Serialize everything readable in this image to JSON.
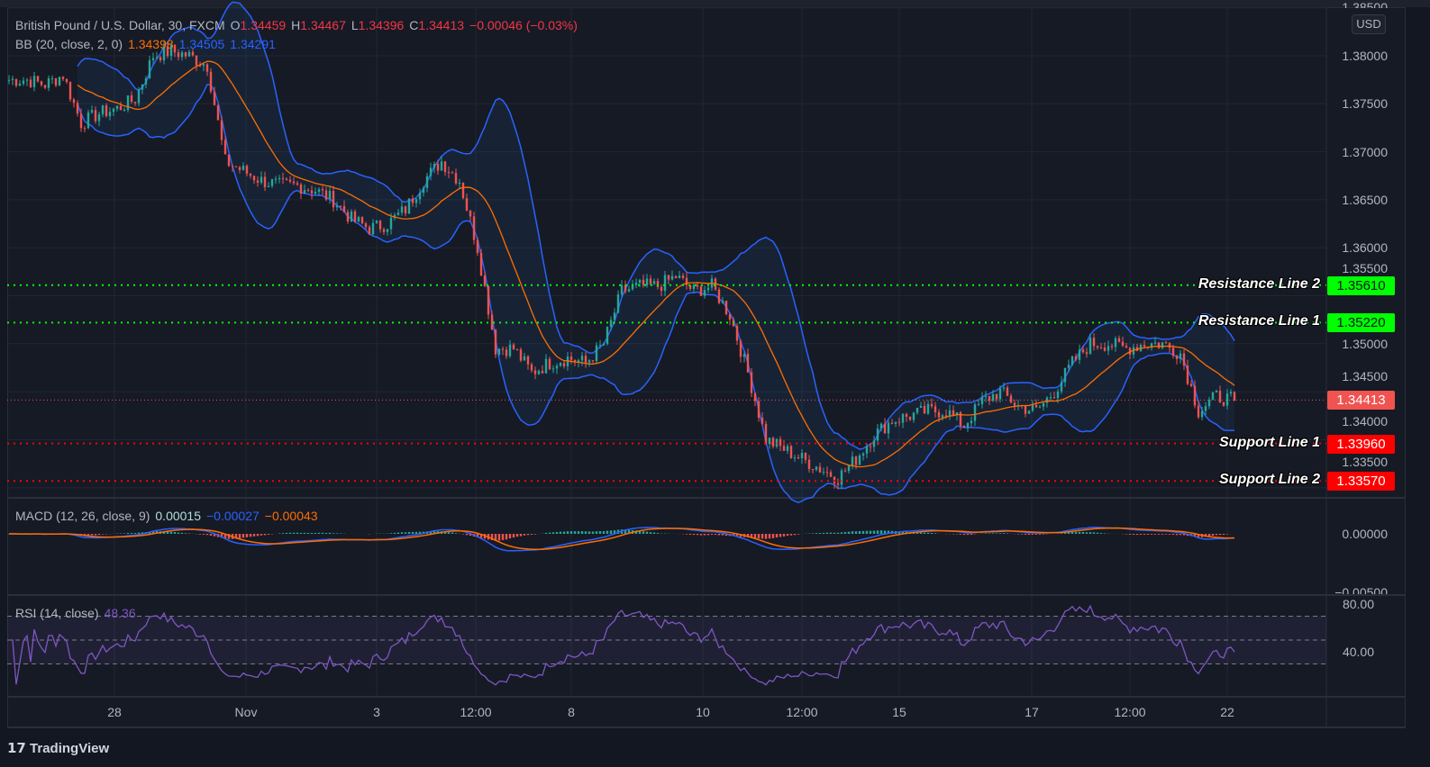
{
  "header": {
    "symbol": "British Pound / U.S. Dollar, 30, FXCM",
    "open_label": "O",
    "open": "1.34459",
    "high_label": "H",
    "high": "1.34467",
    "low_label": "L",
    "low": "1.34396",
    "close_label": "C",
    "close": "1.34413",
    "change": "−0.00046 (−0.03%)",
    "bb_label": "BB (20, close, 2, 0)",
    "bb_basis": "1.34398",
    "bb_upper": "1.34505",
    "bb_lower": "1.34291"
  },
  "price_axis": {
    "currency": "USD",
    "ticks": [
      "1.38500",
      "1.38000",
      "1.37500",
      "1.37000",
      "1.36500",
      "1.36000",
      "1.35500",
      "1.35000",
      "1.34500",
      "1.34000",
      "1.33500"
    ]
  },
  "levels": [
    {
      "name": "Resistance Line 2",
      "value": "1.35610",
      "color": "#00ff00"
    },
    {
      "name": "Resistance Line 1",
      "value": "1.35220",
      "color": "#00ff00"
    },
    {
      "name": "Support Line 1",
      "value": "1.33960",
      "color": "#ff0000"
    },
    {
      "name": "Support Line 2",
      "value": "1.33570",
      "color": "#ff0000"
    }
  ],
  "last_price": {
    "value": "1.34413",
    "color": "#f05350"
  },
  "macd": {
    "label": "MACD (12, 26, close, 9)",
    "histogram": "0.00015",
    "macd": "−0.00027",
    "signal": "−0.00043",
    "ticks": [
      "0.00000",
      "−0.00500"
    ]
  },
  "rsi": {
    "label": "RSI (14, close)",
    "value": "48.36",
    "ticks": [
      "80.00",
      "40.00"
    ]
  },
  "time_axis": {
    "labels": [
      "28",
      "Nov",
      "3",
      "12:00",
      "8",
      "10",
      "12:00",
      "15",
      "17",
      "12:00",
      "22"
    ]
  },
  "footer": {
    "brand": "TradingView"
  },
  "colors": {
    "up": "#26a69a",
    "down": "#ef5350",
    "bb_basis": "#ff6d00",
    "bb_band": "#2962ff",
    "rsi": "#7e57c2"
  },
  "chart_data": {
    "type": "candlestick",
    "title": "British Pound / U.S. Dollar, 30, FXCM",
    "ylim": [
      1.333,
      1.385
    ],
    "approx_close_path": [
      1.3775,
      1.3775,
      1.377,
      1.378,
      1.373,
      1.374,
      1.3745,
      1.3755,
      1.38,
      1.3805,
      1.38,
      1.379,
      1.369,
      1.368,
      1.367,
      1.3665,
      1.3665,
      1.366,
      1.365,
      1.363,
      1.362,
      1.3625,
      1.364,
      1.367,
      1.369,
      1.367,
      1.36,
      1.3495,
      1.3495,
      1.347,
      1.348,
      1.3485,
      1.348,
      1.35,
      1.3555,
      1.356,
      1.356,
      1.357,
      1.3555,
      1.356,
      1.353,
      1.347,
      1.34,
      1.339,
      1.338,
      1.337,
      1.336,
      1.338,
      1.3405,
      1.342,
      1.3425,
      1.343,
      1.343,
      1.3415,
      1.344,
      1.345,
      1.3435,
      1.343,
      1.345,
      1.348,
      1.35,
      1.35,
      1.3495,
      1.35,
      1.35,
      1.349,
      1.343,
      1.3445,
      1.3441
    ]
  }
}
